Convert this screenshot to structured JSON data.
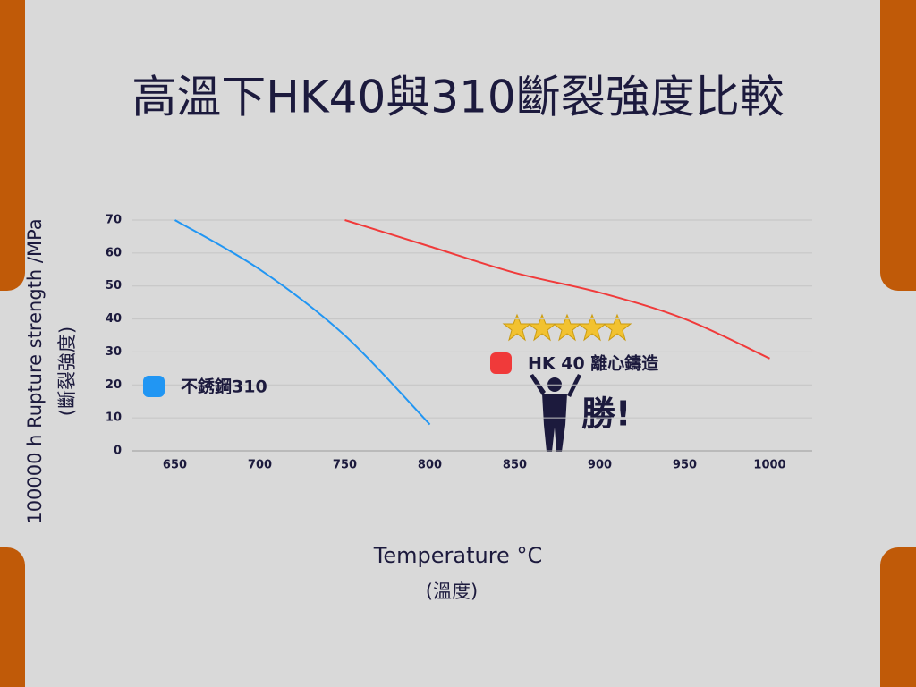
{
  "chart_data": {
    "type": "line",
    "title": "高溫下HK40與310斷裂強度比較",
    "y_label": "100000 h Rupture strength /MPa",
    "y_label_sub": "(斷裂強度)",
    "x_label": "Temperature °C",
    "x_label_sub": "(溫度)",
    "annotation": "勝!",
    "x": [
      650,
      700,
      750,
      800,
      850,
      900,
      950,
      1000
    ],
    "series": [
      {
        "name": "不銹鋼310",
        "color": "#2196f3",
        "values": [
          70,
          55,
          35,
          8,
          null,
          null,
          null,
          null
        ]
      },
      {
        "name": "HK 40 離心鑄造",
        "color": "#f03a3a",
        "values": [
          null,
          null,
          70,
          62,
          54,
          48,
          40,
          28
        ]
      }
    ],
    "xlim": [
      625,
      1025
    ],
    "xticks": [
      650,
      700,
      750,
      800,
      850,
      900,
      950,
      1000
    ],
    "ylim": [
      0,
      70
    ],
    "yticks": [
      0,
      10,
      20,
      30,
      40,
      50,
      60,
      70
    ],
    "grid": true
  }
}
